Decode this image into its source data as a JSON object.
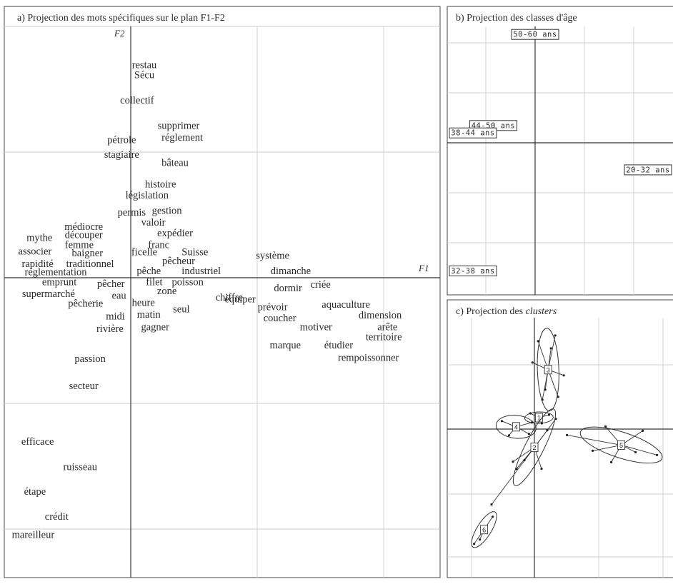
{
  "chart_data": [
    {
      "type": "scatter",
      "title": "a) Projection des mots spécifiques sur le plan F1-F2",
      "xlabel": "F1",
      "ylabel": "F2",
      "points": [
        {
          "label": "restau",
          "x": 0.15,
          "y": 2.35
        },
        {
          "label": "Sécu",
          "x": 0.15,
          "y": 2.24
        },
        {
          "label": "collectif",
          "x": 0.07,
          "y": 1.96
        },
        {
          "label": "supprimer",
          "x": 0.53,
          "y": 1.68
        },
        {
          "label": "réglement",
          "x": 0.57,
          "y": 1.55
        },
        {
          "label": "pétrole",
          "x": -0.1,
          "y": 1.52
        },
        {
          "label": "stagiaire",
          "x": -0.1,
          "y": 1.36
        },
        {
          "label": "bâteau",
          "x": 0.49,
          "y": 1.27
        },
        {
          "label": "histoire",
          "x": 0.33,
          "y": 1.03
        },
        {
          "label": "législation",
          "x": 0.18,
          "y": 0.91
        },
        {
          "label": "permis",
          "x": 0.01,
          "y": 0.72
        },
        {
          "label": "gestion",
          "x": 0.4,
          "y": 0.74
        },
        {
          "label": "valoir",
          "x": 0.25,
          "y": 0.61
        },
        {
          "label": "médiocre",
          "x": -0.52,
          "y": 0.56
        },
        {
          "label": "expédier",
          "x": 0.49,
          "y": 0.49
        },
        {
          "label": "découper",
          "x": -0.52,
          "y": 0.47
        },
        {
          "label": "mythe",
          "x": -1.01,
          "y": 0.44
        },
        {
          "label": "femme",
          "x": -0.57,
          "y": 0.36
        },
        {
          "label": "franc",
          "x": 0.31,
          "y": 0.36
        },
        {
          "label": "associer",
          "x": -1.06,
          "y": 0.29
        },
        {
          "label": "baigner",
          "x": -0.48,
          "y": 0.27
        },
        {
          "label": "ficelle",
          "x": 0.15,
          "y": 0.28
        },
        {
          "label": "Suisse",
          "x": 0.71,
          "y": 0.28
        },
        {
          "label": "système",
          "x": 1.57,
          "y": 0.24
        },
        {
          "label": "rapidité",
          "x": -1.03,
          "y": 0.15
        },
        {
          "label": "traditionnel",
          "x": -0.45,
          "y": 0.15
        },
        {
          "label": "pêcheur",
          "x": 0.53,
          "y": 0.18
        },
        {
          "label": "réglementation",
          "x": -0.83,
          "y": 0.06
        },
        {
          "label": "pêche",
          "x": 0.2,
          "y": 0.07
        },
        {
          "label": "industriel",
          "x": 0.78,
          "y": 0.07
        },
        {
          "label": "dimanche",
          "x": 1.77,
          "y": 0.07
        },
        {
          "label": "emprunt",
          "x": -0.79,
          "y": -0.05
        },
        {
          "label": "pêcher",
          "x": -0.22,
          "y": -0.07
        },
        {
          "label": "filet",
          "x": 0.26,
          "y": -0.05
        },
        {
          "label": "poisson",
          "x": 0.63,
          "y": -0.05
        },
        {
          "label": "criée",
          "x": 2.1,
          "y": -0.08
        },
        {
          "label": "dormir",
          "x": 1.74,
          "y": -0.12
        },
        {
          "label": "supermarché",
          "x": -0.91,
          "y": -0.18
        },
        {
          "label": "zone",
          "x": 0.4,
          "y": -0.15
        },
        {
          "label": "eau",
          "x": -0.13,
          "y": -0.2
        },
        {
          "label": "chiffre",
          "x": 1.09,
          "y": -0.22
        },
        {
          "label": "équiper",
          "x": 1.21,
          "y": -0.24
        },
        {
          "label": "pêcherie",
          "x": -0.5,
          "y": -0.29
        },
        {
          "label": "heure",
          "x": 0.14,
          "y": -0.28
        },
        {
          "label": "prévoir",
          "x": 1.57,
          "y": -0.33
        },
        {
          "label": "aquaculture",
          "x": 2.38,
          "y": -0.3
        },
        {
          "label": "seul",
          "x": 0.56,
          "y": -0.35
        },
        {
          "label": "midi",
          "x": -0.17,
          "y": -0.43
        },
        {
          "label": "matin",
          "x": 0.2,
          "y": -0.41
        },
        {
          "label": "coucher",
          "x": 1.65,
          "y": -0.45
        },
        {
          "label": "dimension",
          "x": 2.76,
          "y": -0.42
        },
        {
          "label": "rivière",
          "x": -0.23,
          "y": -0.57
        },
        {
          "label": "gagner",
          "x": 0.27,
          "y": -0.55
        },
        {
          "label": "motiver",
          "x": 2.05,
          "y": -0.55
        },
        {
          "label": "arête",
          "x": 2.84,
          "y": -0.55
        },
        {
          "label": "territoire",
          "x": 2.8,
          "y": -0.66
        },
        {
          "label": "marque",
          "x": 1.71,
          "y": -0.75
        },
        {
          "label": "étudier",
          "x": 2.3,
          "y": -0.75
        },
        {
          "label": "rempoissonner",
          "x": 2.63,
          "y": -0.89
        },
        {
          "label": "passion",
          "x": -0.45,
          "y": -0.9
        },
        {
          "label": "secteur",
          "x": -0.52,
          "y": -1.2
        },
        {
          "label": "efficace",
          "x": -1.03,
          "y": -1.82
        },
        {
          "label": "ruisseau",
          "x": -0.56,
          "y": -2.1
        },
        {
          "label": "étape",
          "x": -1.06,
          "y": -2.37
        },
        {
          "label": "crédit",
          "x": -0.82,
          "y": -2.65
        },
        {
          "label": "mareilleur",
          "x": -1.08,
          "y": -2.85
        }
      ]
    },
    {
      "type": "scatter",
      "title": "b) Projection des classes d'âge",
      "points": [
        {
          "label": "50-60 ans",
          "x": 0.0,
          "y": 2.2
        },
        {
          "label": "44-50 ans",
          "x": -0.85,
          "y": 0.35
        },
        {
          "label": "38-44 ans",
          "x": -1.5,
          "y": 0.2
        },
        {
          "label": "20-32 ans",
          "x": 2.7,
          "y": -0.55
        },
        {
          "label": "32-38 ans",
          "x": -1.8,
          "y": -2.6
        }
      ]
    },
    {
      "type": "scatter",
      "title": "c) Projection des clusters",
      "clusters": [
        {
          "label": "1",
          "x": 0.1,
          "y": 0.25
        },
        {
          "label": "2",
          "x": 0.0,
          "y": -0.4
        },
        {
          "label": "3",
          "x": 0.3,
          "y": 1.3
        },
        {
          "label": "4",
          "x": -0.4,
          "y": 0.05
        },
        {
          "label": "5",
          "x": 1.9,
          "y": -0.35
        },
        {
          "label": "6",
          "x": -1.1,
          "y": -2.2
        }
      ]
    }
  ]
}
